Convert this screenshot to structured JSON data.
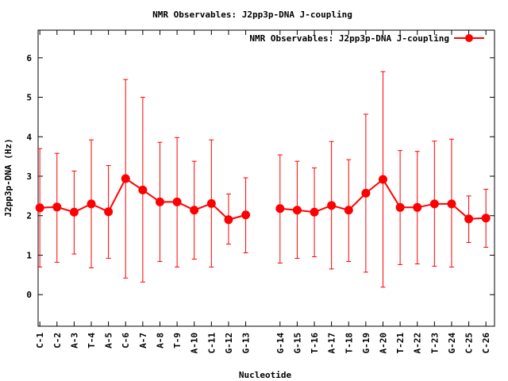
{
  "chart_data": {
    "type": "line",
    "title": "NMR Observables: J2pp3p-DNA J-coupling",
    "xlabel": "Nucleotide",
    "ylabel": "J2pp3p-DNA (Hz)",
    "ylim": [
      -0.8,
      6.7
    ],
    "yticks": [
      0,
      1,
      2,
      3,
      4,
      5,
      6
    ],
    "grid": false,
    "legend_position": "top-right",
    "color": "#ff0000",
    "series": [
      {
        "name": "NMR Observables: J2pp3p-DNA J-coupling",
        "x": [
          1,
          2,
          3,
          4,
          5,
          6,
          7,
          8,
          9,
          10,
          11,
          12,
          13,
          15,
          16,
          17,
          18,
          19,
          20,
          21,
          22,
          23,
          24,
          25,
          26,
          27
        ],
        "labels": [
          "C-1",
          "C-2",
          "A-3",
          "T-4",
          "A-5",
          "C-6",
          "A-7",
          "A-8",
          "T-9",
          "A-10",
          "C-11",
          "G-12",
          "G-13",
          "G-14",
          "G-15",
          "T-16",
          "A-17",
          "T-18",
          "G-19",
          "A-20",
          "T-21",
          "A-22",
          "T-23",
          "G-24",
          "C-25",
          "C-26"
        ],
        "values": [
          2.2,
          2.22,
          2.09,
          2.3,
          2.1,
          2.94,
          2.65,
          2.35,
          2.35,
          2.14,
          2.31,
          1.9,
          2.02,
          2.18,
          2.14,
          2.09,
          2.26,
          2.14,
          2.57,
          2.92,
          2.21,
          2.21,
          2.3,
          2.3,
          1.92,
          1.94
        ],
        "err_low": [
          0.7,
          0.82,
          1.03,
          0.68,
          0.92,
          0.42,
          0.32,
          0.84,
          0.7,
          0.9,
          0.7,
          1.28,
          1.06,
          0.8,
          0.92,
          0.96,
          0.65,
          0.84,
          0.57,
          0.19,
          0.76,
          0.78,
          0.72,
          0.7,
          1.32,
          1.2
        ],
        "err_high": [
          3.7,
          3.58,
          3.13,
          3.92,
          3.27,
          5.45,
          5.0,
          3.86,
          3.98,
          3.38,
          3.92,
          2.55,
          2.96,
          3.54,
          3.38,
          3.21,
          3.88,
          3.42,
          4.57,
          5.65,
          3.65,
          3.63,
          3.89,
          3.94,
          2.5,
          2.67
        ]
      }
    ],
    "x_tick_labels": [
      "C-1",
      "C-2",
      "A-3",
      "T-4",
      "A-5",
      "C-6",
      "A-7",
      "A-8",
      "T-9",
      "A-10",
      "C-11",
      "G-12",
      "G-13",
      "G-14",
      "G-15",
      "T-16",
      "A-17",
      "T-18",
      "G-19",
      "A-20",
      "T-21",
      "A-22",
      "T-23",
      "G-24",
      "C-25",
      "C-26"
    ]
  }
}
